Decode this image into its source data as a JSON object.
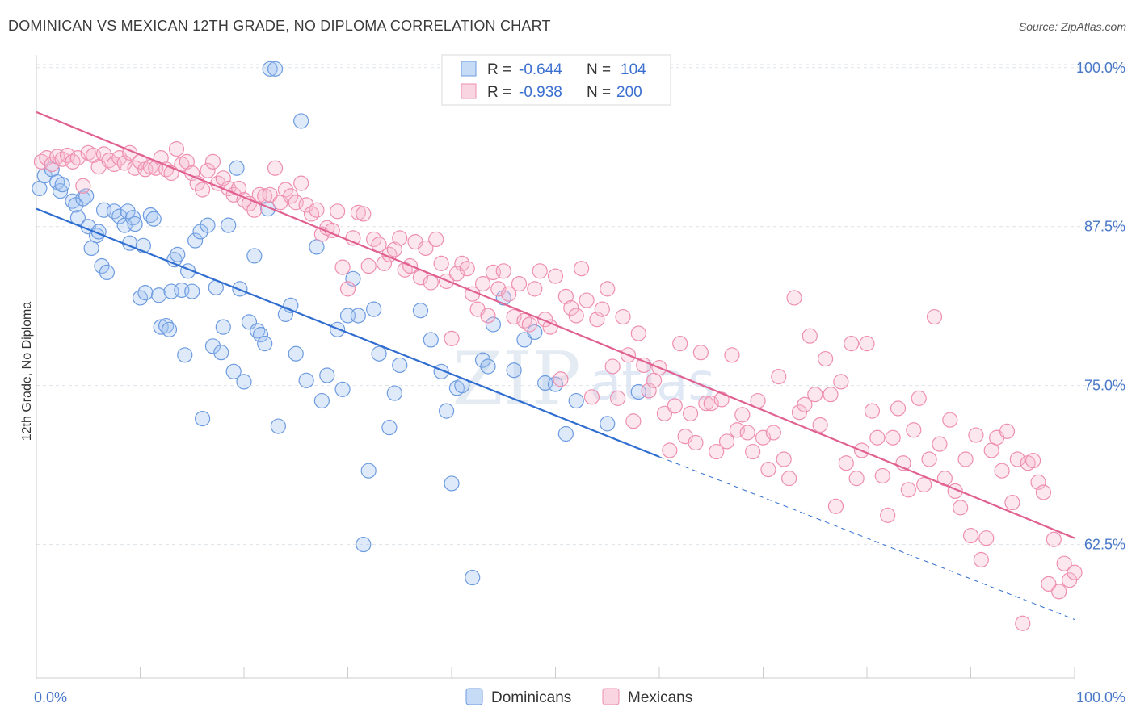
{
  "title": "DOMINICAN VS MEXICAN 12TH GRADE, NO DIPLOMA CORRELATION CHART",
  "source": "Source: ZipAtlas.com",
  "watermark": {
    "zip": "ZIP",
    "atlas": "atlas"
  },
  "colors": {
    "dominicans": "#6d9be0",
    "dominicans_fill": "rgba(160,195,240,0.35)",
    "dominicans_line": "#2f6dd0",
    "mexicans": "#ee8fb0",
    "mexicans_fill": "rgba(245,185,205,0.35)",
    "mexicans_line": "#e0608f",
    "axis_tick": "#4a78c8",
    "grid": "#dde3ea"
  },
  "legend": {
    "r_label": "R =",
    "n_label": "N =",
    "rows": [
      {
        "series": "Dominicans",
        "r": "-0.644",
        "n": "104"
      },
      {
        "series": "Mexicans",
        "r": "-0.938",
        "n": "200"
      }
    ]
  },
  "chart_data": {
    "type": "scatter",
    "xlabel": "",
    "ylabel": "12th Grade, No Diploma",
    "xlim": [
      0,
      100
    ],
    "ylim": [
      52,
      101
    ],
    "x_tick_labels": [
      "0.0%",
      "100.0%"
    ],
    "y_ticks": [
      100.0,
      87.5,
      75.0,
      62.5
    ],
    "y_tick_labels": [
      "100.0%",
      "87.5%",
      "75.0%",
      "62.5%"
    ],
    "grid": true,
    "legend_position": "top-center",
    "series": [
      {
        "name": "Dominicans",
        "points": [
          [
            0.3,
            90.5
          ],
          [
            0.8,
            91.5
          ],
          [
            1.5,
            92.0
          ],
          [
            2,
            91.0
          ],
          [
            2.3,
            90.3
          ],
          [
            2.5,
            90.8
          ],
          [
            3.5,
            89.5
          ],
          [
            3.8,
            89.2
          ],
          [
            4,
            88.2
          ],
          [
            4.5,
            89.7
          ],
          [
            4.8,
            89.9
          ],
          [
            5,
            87.5
          ],
          [
            5.3,
            85.8
          ],
          [
            5.8,
            86.8
          ],
          [
            6,
            87.1
          ],
          [
            6.3,
            84.4
          ],
          [
            6.8,
            83.9
          ],
          [
            6.5,
            88.8
          ],
          [
            7.5,
            88.7
          ],
          [
            8,
            88.3
          ],
          [
            8.5,
            87.6
          ],
          [
            8.8,
            88.7
          ],
          [
            9,
            86.2
          ],
          [
            9.3,
            88.2
          ],
          [
            9.5,
            87.7
          ],
          [
            10,
            81.9
          ],
          [
            10.3,
            86.0
          ],
          [
            10.5,
            82.3
          ],
          [
            11,
            88.4
          ],
          [
            11.3,
            88.1
          ],
          [
            11.8,
            82.1
          ],
          [
            12,
            79.6
          ],
          [
            12.5,
            79.7
          ],
          [
            12.8,
            79.4
          ],
          [
            13,
            82.4
          ],
          [
            13.3,
            84.9
          ],
          [
            13.6,
            85.3
          ],
          [
            14,
            82.5
          ],
          [
            14.3,
            77.4
          ],
          [
            14.6,
            84.0
          ],
          [
            15,
            82.4
          ],
          [
            15.3,
            86.4
          ],
          [
            15.8,
            87.1
          ],
          [
            16,
            72.4
          ],
          [
            16.5,
            87.6
          ],
          [
            17,
            78.1
          ],
          [
            17.3,
            82.7
          ],
          [
            17.8,
            77.6
          ],
          [
            18,
            79.6
          ],
          [
            18.5,
            87.6
          ],
          [
            19,
            76.1
          ],
          [
            19.3,
            92.1
          ],
          [
            19.6,
            82.6
          ],
          [
            20,
            75.3
          ],
          [
            20.5,
            80.0
          ],
          [
            21,
            85.2
          ],
          [
            21.3,
            79.3
          ],
          [
            21.6,
            79.0
          ],
          [
            22,
            78.3
          ],
          [
            22.3,
            88.9
          ],
          [
            22.5,
            99.9
          ],
          [
            23,
            99.9
          ],
          [
            23.3,
            71.8
          ],
          [
            24,
            80.6
          ],
          [
            24.5,
            81.3
          ],
          [
            25,
            77.5
          ],
          [
            25.5,
            95.8
          ],
          [
            26,
            75.4
          ],
          [
            27,
            85.9
          ],
          [
            27.5,
            73.8
          ],
          [
            28,
            75.8
          ],
          [
            29,
            79.4
          ],
          [
            29.5,
            74.7
          ],
          [
            30,
            80.5
          ],
          [
            30.5,
            83.4
          ],
          [
            31,
            80.5
          ],
          [
            31.5,
            62.5
          ],
          [
            32,
            68.3
          ],
          [
            32.5,
            81.0
          ],
          [
            33,
            77.5
          ],
          [
            34,
            71.7
          ],
          [
            34.5,
            74.4
          ],
          [
            35,
            76.6
          ],
          [
            37,
            80.9
          ],
          [
            38,
            78.6
          ],
          [
            39,
            76.1
          ],
          [
            39.5,
            73.0
          ],
          [
            40,
            67.3
          ],
          [
            40.5,
            74.8
          ],
          [
            41,
            75.0
          ],
          [
            42,
            59.9
          ],
          [
            43,
            77.0
          ],
          [
            43.5,
            76.5
          ],
          [
            44,
            79.8
          ],
          [
            45,
            81.9
          ],
          [
            46,
            76.2
          ],
          [
            47,
            78.6
          ],
          [
            48,
            79.2
          ],
          [
            49,
            75.2
          ],
          [
            50,
            75.1
          ],
          [
            51,
            71.2
          ],
          [
            52,
            73.8
          ],
          [
            55,
            72.0
          ],
          [
            58,
            74.5
          ]
        ]
      },
      {
        "name": "Mexicans",
        "points": [
          [
            0.5,
            92.6
          ],
          [
            1,
            92.9
          ],
          [
            1.5,
            92.4
          ],
          [
            2,
            93.0
          ],
          [
            2.5,
            92.8
          ],
          [
            3,
            93.1
          ],
          [
            3.5,
            92.6
          ],
          [
            4,
            92.9
          ],
          [
            4.5,
            90.7
          ],
          [
            5,
            93.3
          ],
          [
            5.5,
            93.1
          ],
          [
            6,
            92.2
          ],
          [
            6.5,
            93.2
          ],
          [
            7,
            92.7
          ],
          [
            7.5,
            92.4
          ],
          [
            8,
            92.9
          ],
          [
            8.5,
            92.5
          ],
          [
            9,
            93.3
          ],
          [
            9.5,
            92.1
          ],
          [
            10,
            92.6
          ],
          [
            10.5,
            92.0
          ],
          [
            11,
            92.2
          ],
          [
            11.5,
            92.1
          ],
          [
            12,
            92.9
          ],
          [
            12.5,
            92.0
          ],
          [
            13,
            91.7
          ],
          [
            13.5,
            93.6
          ],
          [
            14,
            92.4
          ],
          [
            14.5,
            92.6
          ],
          [
            15,
            91.7
          ],
          [
            15.5,
            90.9
          ],
          [
            16,
            90.4
          ],
          [
            16.5,
            91.9
          ],
          [
            17,
            92.6
          ],
          [
            17.5,
            90.9
          ],
          [
            18,
            91.3
          ],
          [
            18.5,
            90.5
          ],
          [
            19,
            90.0
          ],
          [
            19.5,
            90.5
          ],
          [
            20,
            89.6
          ],
          [
            20.5,
            89.3
          ],
          [
            21,
            88.8
          ],
          [
            21.5,
            90.0
          ],
          [
            22,
            89.9
          ],
          [
            22.5,
            90.0
          ],
          [
            23,
            92.1
          ],
          [
            23.5,
            89.4
          ],
          [
            24,
            90.4
          ],
          [
            24.5,
            89.9
          ],
          [
            25,
            89.4
          ],
          [
            25.5,
            90.9
          ],
          [
            26,
            89.2
          ],
          [
            26.5,
            88.5
          ],
          [
            27,
            88.8
          ],
          [
            27.5,
            86.9
          ],
          [
            28,
            87.4
          ],
          [
            28.5,
            87.2
          ],
          [
            29,
            88.7
          ],
          [
            29.5,
            84.3
          ],
          [
            30,
            82.6
          ],
          [
            30.5,
            86.6
          ],
          [
            31,
            88.6
          ],
          [
            31.5,
            88.5
          ],
          [
            32,
            84.4
          ],
          [
            32.5,
            86.5
          ],
          [
            33,
            86.1
          ],
          [
            33.5,
            84.6
          ],
          [
            34,
            85.3
          ],
          [
            34.5,
            85.7
          ],
          [
            35,
            86.6
          ],
          [
            35.5,
            84.1
          ],
          [
            36,
            84.4
          ],
          [
            36.5,
            86.3
          ],
          [
            37,
            83.5
          ],
          [
            37.5,
            85.8
          ],
          [
            38,
            83.1
          ],
          [
            38.5,
            86.5
          ],
          [
            39,
            84.6
          ],
          [
            39.5,
            83.2
          ],
          [
            40,
            78.7
          ],
          [
            40.5,
            83.8
          ],
          [
            41,
            84.6
          ],
          [
            41.5,
            84.2
          ],
          [
            42,
            82.2
          ],
          [
            42.5,
            81.0
          ],
          [
            43,
            83.0
          ],
          [
            43.5,
            80.5
          ],
          [
            44,
            83.9
          ],
          [
            44.5,
            82.6
          ],
          [
            45,
            84.0
          ],
          [
            45.5,
            82.2
          ],
          [
            46,
            80.4
          ],
          [
            46.5,
            83.0
          ],
          [
            47,
            80.1
          ],
          [
            47.5,
            79.8
          ],
          [
            48,
            82.6
          ],
          [
            48.5,
            84.0
          ],
          [
            49,
            80.2
          ],
          [
            49.5,
            79.6
          ],
          [
            50,
            83.6
          ],
          [
            50.5,
            75.5
          ],
          [
            51,
            82.0
          ],
          [
            51.5,
            81.1
          ],
          [
            52,
            80.5
          ],
          [
            52.5,
            84.2
          ],
          [
            53,
            81.7
          ],
          [
            53.5,
            74.1
          ],
          [
            54,
            80.2
          ],
          [
            54.5,
            81.0
          ],
          [
            55,
            82.6
          ],
          [
            55.5,
            76.5
          ],
          [
            56,
            74.0
          ],
          [
            56.5,
            80.4
          ],
          [
            57,
            77.4
          ],
          [
            57.5,
            72.2
          ],
          [
            58,
            79.1
          ],
          [
            58.5,
            76.6
          ],
          [
            59,
            74.6
          ],
          [
            59.5,
            75.4
          ],
          [
            60,
            76.4
          ],
          [
            60.5,
            72.8
          ],
          [
            61,
            69.9
          ],
          [
            61.5,
            73.4
          ],
          [
            62,
            78.3
          ],
          [
            62.5,
            71.0
          ],
          [
            63,
            72.8
          ],
          [
            63.5,
            70.5
          ],
          [
            64,
            77.6
          ],
          [
            64.5,
            73.6
          ],
          [
            65,
            73.6
          ],
          [
            65.5,
            69.8
          ],
          [
            66,
            73.9
          ],
          [
            66.5,
            70.6
          ],
          [
            67,
            77.4
          ],
          [
            67.5,
            71.5
          ],
          [
            68,
            72.7
          ],
          [
            68.5,
            71.3
          ],
          [
            69,
            69.8
          ],
          [
            69.5,
            73.8
          ],
          [
            70,
            70.9
          ],
          [
            70.5,
            68.4
          ],
          [
            71,
            71.3
          ],
          [
            71.5,
            75.7
          ],
          [
            72,
            69.2
          ],
          [
            72.5,
            67.7
          ],
          [
            73,
            81.9
          ],
          [
            73.5,
            72.9
          ],
          [
            74,
            73.5
          ],
          [
            74.5,
            78.9
          ],
          [
            75,
            74.3
          ],
          [
            75.5,
            71.9
          ],
          [
            76,
            77.1
          ],
          [
            76.5,
            74.3
          ],
          [
            77,
            65.5
          ],
          [
            77.5,
            75.3
          ],
          [
            78,
            68.9
          ],
          [
            78.5,
            78.3
          ],
          [
            79,
            67.7
          ],
          [
            79.5,
            69.9
          ],
          [
            80,
            78.3
          ],
          [
            80.5,
            73.0
          ],
          [
            81,
            70.9
          ],
          [
            81.5,
            67.9
          ],
          [
            82,
            64.8
          ],
          [
            82.5,
            70.9
          ],
          [
            83,
            73.2
          ],
          [
            83.5,
            68.9
          ],
          [
            84,
            66.8
          ],
          [
            84.5,
            71.5
          ],
          [
            85,
            74.0
          ],
          [
            85.5,
            67.2
          ],
          [
            86,
            69.2
          ],
          [
            86.5,
            80.4
          ],
          [
            87,
            70.4
          ],
          [
            87.5,
            67.7
          ],
          [
            88,
            72.3
          ],
          [
            88.5,
            66.7
          ],
          [
            89,
            65.4
          ],
          [
            89.5,
            69.2
          ],
          [
            90,
            63.2
          ],
          [
            90.5,
            71.1
          ],
          [
            91,
            61.3
          ],
          [
            91.5,
            63.0
          ],
          [
            92,
            69.9
          ],
          [
            92.5,
            70.9
          ],
          [
            93,
            68.3
          ],
          [
            93.5,
            71.4
          ],
          [
            94,
            65.8
          ],
          [
            94.5,
            69.2
          ],
          [
            95,
            56.3
          ],
          [
            95.5,
            68.9
          ],
          [
            96,
            69.1
          ],
          [
            96.5,
            67.4
          ],
          [
            97,
            66.6
          ],
          [
            97.5,
            59.4
          ],
          [
            98,
            62.9
          ],
          [
            98.5,
            58.8
          ],
          [
            99,
            61.0
          ],
          [
            99.5,
            59.7
          ],
          [
            100,
            60.3
          ]
        ]
      }
    ],
    "trend_lines": [
      {
        "series": "Dominicans",
        "x0": 0,
        "y0": 88.9,
        "x1": 60,
        "y1": 69.4,
        "dashed_to_x": 100,
        "dashed_to_y": 56.6
      },
      {
        "series": "Mexicans",
        "x0": 0,
        "y0": 96.5,
        "x1": 100,
        "y1": 63.0
      }
    ]
  },
  "bottom_legend": [
    "Dominicans",
    "Mexicans"
  ]
}
